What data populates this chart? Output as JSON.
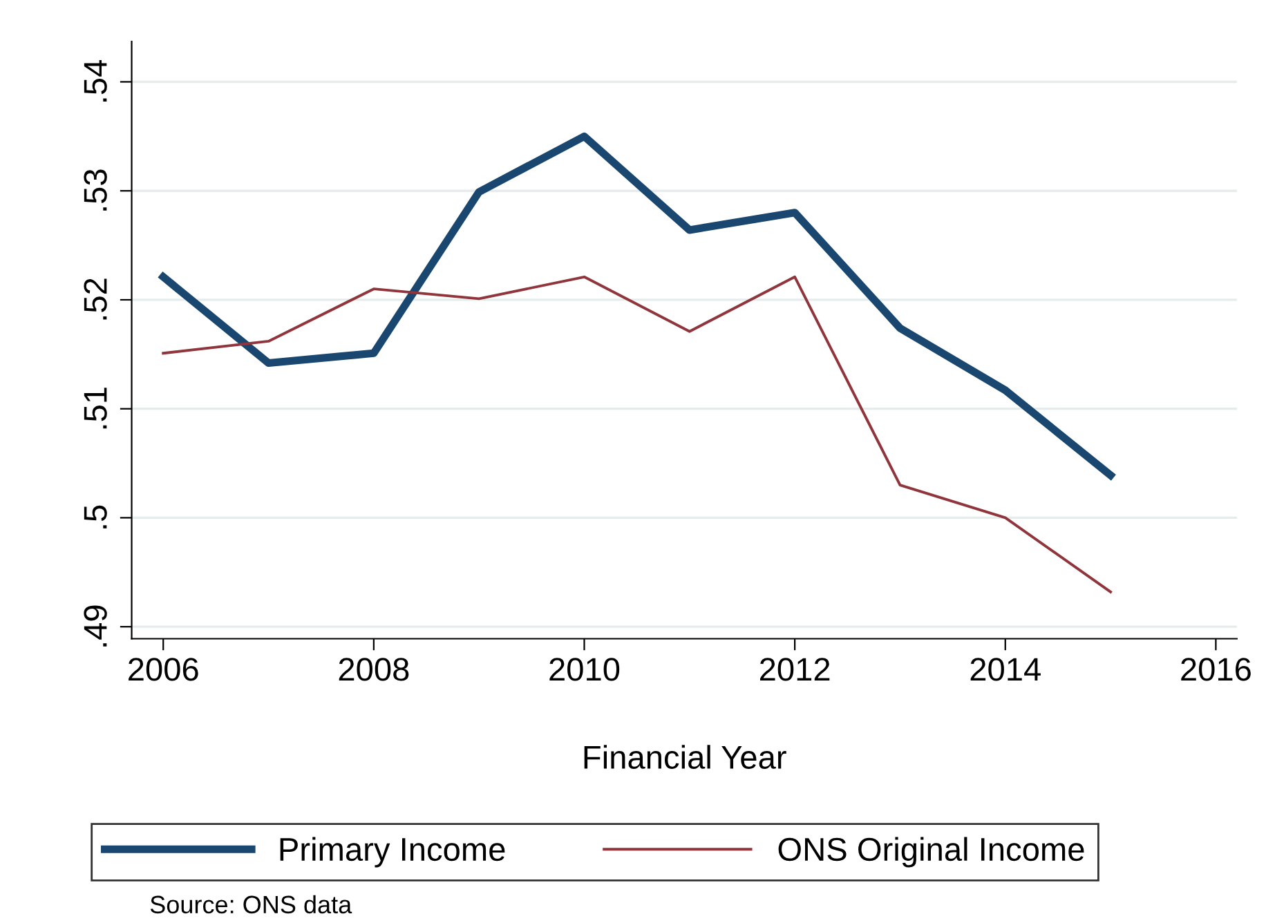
{
  "chart_data": {
    "type": "line",
    "xlabel": "Financial Year",
    "x": [
      2006,
      2007,
      2008,
      2009,
      2010,
      2011,
      2012,
      2013,
      2014,
      2015
    ],
    "series": [
      {
        "name": "Primary Income",
        "color": "#1a476f",
        "values": [
          0.5221,
          0.5142,
          0.5151,
          0.5299,
          0.535,
          0.5264,
          0.528,
          0.5174,
          0.5117,
          0.5039
        ]
      },
      {
        "name": "ONS Original Income",
        "color": "#90353b",
        "values": [
          0.5151,
          0.5162,
          0.521,
          0.5201,
          0.5221,
          0.5171,
          0.5221,
          0.503,
          0.5,
          0.4932
        ]
      }
    ],
    "xlim": [
      2005.7,
      2016.2
    ],
    "xticks": [
      2006,
      2008,
      2010,
      2012,
      2014,
      2016
    ],
    "ylim": [
      0.4889,
      0.5437
    ],
    "yticks": [
      {
        "value": 0.49,
        "label": ".49"
      },
      {
        "value": 0.5,
        "label": ".5"
      },
      {
        "value": 0.51,
        "label": ".51"
      },
      {
        "value": 0.52,
        "label": ".52"
      },
      {
        "value": 0.53,
        "label": ".53"
      },
      {
        "value": 0.54,
        "label": ".54"
      }
    ],
    "grid": "y",
    "legend": "bottom",
    "marker": "none",
    "line_style": "solid",
    "annotations": [
      "Source: ONS data"
    ]
  }
}
